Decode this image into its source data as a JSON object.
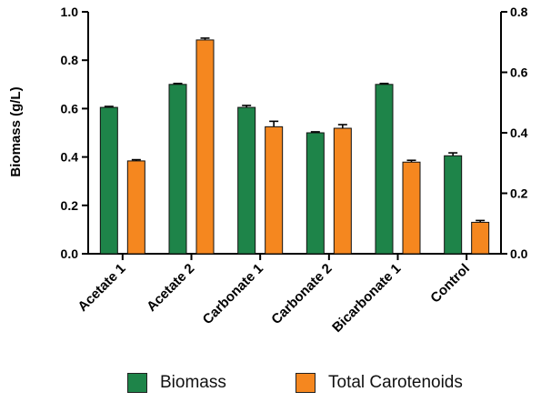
{
  "chart_data": {
    "type": "bar",
    "categories": [
      "Acetate 1",
      "Acetate 2",
      "Carbonate 1",
      "Carbonate 2",
      "Bicarbonate 1",
      "Control"
    ],
    "series": [
      {
        "name": "Biomass",
        "axis": "left",
        "color": "#1e8449",
        "values": [
          0.605,
          0.7,
          0.605,
          0.5,
          0.7,
          0.405
        ],
        "errors": [
          0.004,
          0.004,
          0.008,
          0.004,
          0.004,
          0.012
        ]
      },
      {
        "name": "Total Carotenoids",
        "axis": "right",
        "color": "#f5871f",
        "values": [
          0.307,
          0.707,
          0.42,
          0.415,
          0.303,
          0.104
        ],
        "errors": [
          0.004,
          0.006,
          0.018,
          0.012,
          0.006,
          0.006
        ]
      }
    ],
    "ylabel": "Biomass (g/L)",
    "ylim": [
      0,
      1.0
    ],
    "yticks": [
      "0.0",
      "0.2",
      "0.4",
      "0.6",
      "0.8",
      "1.0"
    ],
    "y2lim": [
      0,
      0.8
    ],
    "y2ticks": [
      "0.0",
      "0.2",
      "0.4",
      "0.6",
      "0.8"
    ],
    "grid": false,
    "legend_position": "bottom"
  }
}
